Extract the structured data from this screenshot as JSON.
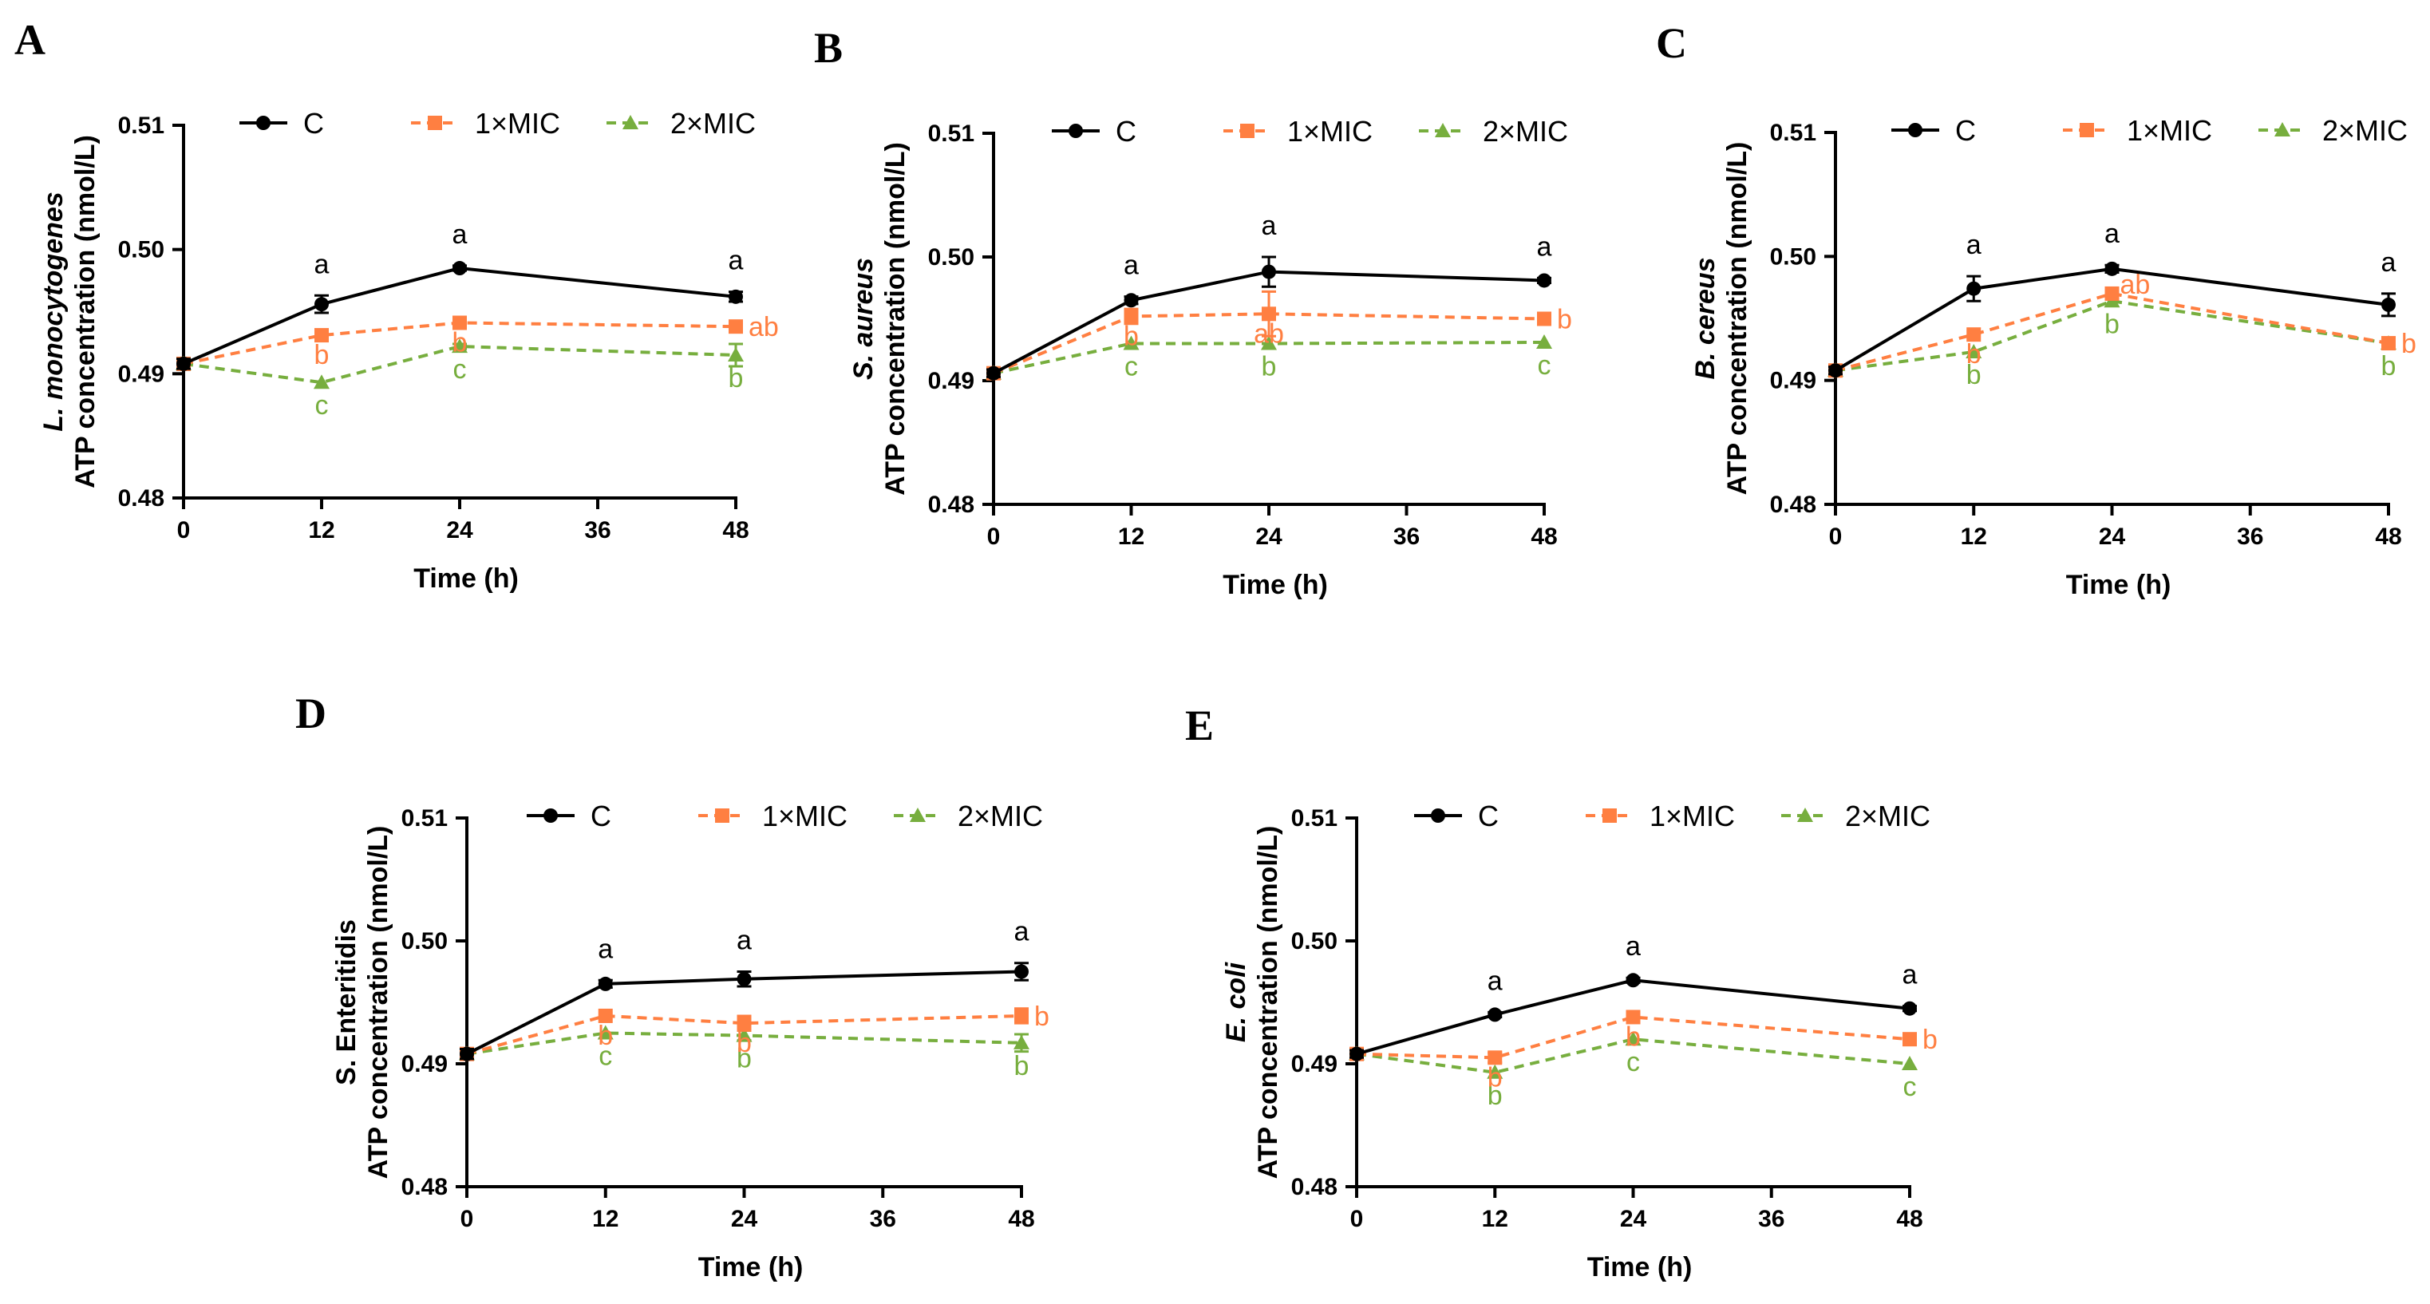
{
  "colors": {
    "C": "#000000",
    "MIC1": "#ff7f41",
    "MIC2": "#77ae3e"
  },
  "legend": [
    "C",
    "1×MIC",
    "2×MIC"
  ],
  "chart_data": [
    {
      "panel": "A",
      "type": "line",
      "ylabel_species": "L. monocytogenes",
      "ylabel_rest": "ATP concentration (nmol/L)",
      "ylabel_italic_species": true,
      "xlabel": "Time (h)",
      "x": [
        0,
        12,
        24,
        36,
        48
      ],
      "x_ticks": [
        "0",
        "12",
        "24",
        "36",
        "48"
      ],
      "ylim": [
        0.48,
        0.51
      ],
      "y_ticks": [
        "0.48",
        "0.49",
        "0.50",
        "0.51"
      ],
      "series": [
        {
          "name": "C",
          "x": [
            0,
            12,
            24,
            48
          ],
          "values": [
            0.4908,
            0.4956,
            0.4985,
            0.4962
          ],
          "errors": [
            0.0004,
            0.0007,
            0.0002,
            0.0004
          ],
          "labels": [
            "",
            "a",
            "a",
            "a"
          ]
        },
        {
          "name": "1×MIC",
          "x": [
            0,
            12,
            24,
            48
          ],
          "values": [
            0.4908,
            0.4931,
            0.4941,
            0.4938
          ],
          "errors": [
            0,
            0,
            0,
            0
          ],
          "labels": [
            "",
            "b",
            "b",
            "ab"
          ]
        },
        {
          "name": "2×MIC",
          "x": [
            0,
            12,
            24,
            48
          ],
          "values": [
            0.4908,
            0.4893,
            0.4922,
            0.4915
          ],
          "errors": [
            0,
            0,
            0.0002,
            0.0009
          ],
          "labels": [
            "",
            "c",
            "c",
            "b"
          ]
        }
      ]
    },
    {
      "panel": "B",
      "type": "line",
      "ylabel_species": "S. aureus",
      "ylabel_rest": "ATP concentration (nmol/L)",
      "ylabel_italic_species": true,
      "xlabel": "Time (h)",
      "x": [
        0,
        12,
        24,
        36,
        48
      ],
      "x_ticks": [
        "0",
        "12",
        "24",
        "36",
        "48"
      ],
      "ylim": [
        0.48,
        0.51
      ],
      "y_ticks": [
        "0.48",
        "0.49",
        "0.50",
        "0.51"
      ],
      "series": [
        {
          "name": "C",
          "x": [
            0,
            12,
            24,
            48
          ],
          "values": [
            0.4906,
            0.4965,
            0.4988,
            0.4981
          ],
          "errors": [
            0.0003,
            0.0003,
            0.0012,
            0.0002
          ],
          "labels": [
            "",
            "a",
            "a",
            "a"
          ]
        },
        {
          "name": "1×MIC",
          "x": [
            0,
            12,
            24,
            48
          ],
          "values": [
            0.4906,
            0.4952,
            0.4954,
            0.495
          ],
          "errors": [
            0,
            0.0006,
            0.0018,
            0
          ],
          "labels": [
            "",
            "b",
            "ab",
            "b"
          ]
        },
        {
          "name": "2×MIC",
          "x": [
            0,
            12,
            24,
            48
          ],
          "values": [
            0.4906,
            0.493,
            0.493,
            0.4931
          ],
          "errors": [
            0,
            0,
            0,
            0
          ],
          "labels": [
            "",
            "c",
            "b",
            "c"
          ]
        }
      ]
    },
    {
      "panel": "C",
      "type": "line",
      "ylabel_species": "B. cereus",
      "ylabel_rest": "ATP concentration (nmol/L)",
      "ylabel_italic_species": true,
      "xlabel": "Time (h)",
      "x": [
        0,
        12,
        24,
        36,
        48
      ],
      "x_ticks": [
        "0",
        "12",
        "24",
        "36",
        "48"
      ],
      "ylim": [
        0.48,
        0.51
      ],
      "y_ticks": [
        "0.48",
        "0.49",
        "0.50",
        "0.51"
      ],
      "series": [
        {
          "name": "C",
          "x": [
            0,
            12,
            24,
            48
          ],
          "values": [
            0.4908,
            0.4974,
            0.499,
            0.4961
          ],
          "errors": [
            0.0003,
            0.001,
            0.0003,
            0.0009
          ],
          "labels": [
            "",
            "a",
            "a",
            "a"
          ]
        },
        {
          "name": "1×MIC",
          "x": [
            0,
            12,
            24,
            48
          ],
          "values": [
            0.4908,
            0.4937,
            0.497,
            0.493
          ],
          "errors": [
            0,
            0,
            0,
            0
          ],
          "labels": [
            "",
            "b",
            "ab",
            "b"
          ]
        },
        {
          "name": "2×MIC",
          "x": [
            0,
            12,
            24,
            48
          ],
          "values": [
            0.4908,
            0.4923,
            0.4964,
            0.493
          ],
          "errors": [
            0,
            0,
            0,
            0
          ],
          "labels": [
            "",
            "b",
            "b",
            "b"
          ]
        }
      ]
    },
    {
      "panel": "D",
      "type": "line",
      "ylabel_species": "S. Enteritidis",
      "ylabel_rest": "ATP concentration (nmol/L)",
      "ylabel_italic_species": false,
      "xlabel": "Time (h)",
      "x": [
        0,
        12,
        24,
        36,
        48
      ],
      "x_ticks": [
        "0",
        "12",
        "24",
        "36",
        "48"
      ],
      "ylim": [
        0.48,
        0.51
      ],
      "y_ticks": [
        "0.48",
        "0.49",
        "0.50",
        "0.51"
      ],
      "series": [
        {
          "name": "C",
          "x": [
            0,
            12,
            24,
            48
          ],
          "values": [
            0.4908,
            0.4965,
            0.4969,
            0.4975
          ],
          "errors": [
            0.0004,
            0.0003,
            0.0006,
            0.0007
          ],
          "labels": [
            "",
            "a",
            "a",
            "a"
          ]
        },
        {
          "name": "1×MIC",
          "x": [
            0,
            12,
            24,
            48
          ],
          "values": [
            0.4908,
            0.4939,
            0.4933,
            0.4939
          ],
          "errors": [
            0,
            0,
            0.0006,
            0.0006
          ],
          "labels": [
            "",
            "b",
            "b",
            "b"
          ]
        },
        {
          "name": "2×MIC",
          "x": [
            0,
            12,
            24,
            48
          ],
          "values": [
            0.4908,
            0.4925,
            0.4923,
            0.4917
          ],
          "errors": [
            0,
            0,
            0.0004,
            0.0007
          ],
          "labels": [
            "",
            "c",
            "b",
            "b"
          ]
        }
      ]
    },
    {
      "panel": "E",
      "type": "line",
      "ylabel_species": "E. coli",
      "ylabel_rest": "ATP concentration (nmol/L)",
      "ylabel_italic_species": true,
      "xlabel": "Time (h)",
      "x": [
        0,
        12,
        24,
        36,
        48
      ],
      "x_ticks": [
        "0",
        "12",
        "24",
        "36",
        "48"
      ],
      "ylim": [
        0.48,
        0.51
      ],
      "y_ticks": [
        "0.48",
        "0.49",
        "0.50",
        "0.51"
      ],
      "series": [
        {
          "name": "C",
          "x": [
            0,
            12,
            24,
            48
          ],
          "values": [
            0.4908,
            0.494,
            0.4968,
            0.4945
          ],
          "errors": [
            0.0003,
            0.0002,
            0.0002,
            0.0002
          ],
          "labels": [
            "",
            "a",
            "a",
            "a"
          ]
        },
        {
          "name": "1×MIC",
          "x": [
            0,
            12,
            24,
            48
          ],
          "values": [
            0.4908,
            0.4905,
            0.4938,
            0.492
          ],
          "errors": [
            0,
            0.0004,
            0,
            0
          ],
          "labels": [
            "",
            "b",
            "b",
            "b"
          ]
        },
        {
          "name": "2×MIC",
          "x": [
            0,
            12,
            24,
            48
          ],
          "values": [
            0.4908,
            0.4893,
            0.492,
            0.49
          ],
          "errors": [
            0,
            0,
            0,
            0
          ],
          "labels": [
            "",
            "b",
            "c",
            "c"
          ]
        }
      ]
    }
  ]
}
